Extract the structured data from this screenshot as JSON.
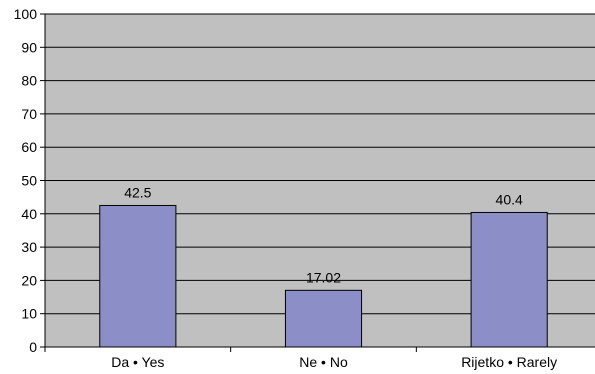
{
  "chart_data": {
    "type": "bar",
    "title": "",
    "xlabel": "",
    "ylabel": "",
    "categories": [
      "Da • Yes",
      "Ne • No",
      "Rijetko • Rarely"
    ],
    "values": [
      42.5,
      17.02,
      40.4
    ],
    "value_labels": [
      "42.5",
      "17.02",
      "40.4"
    ],
    "ylim": [
      0,
      100
    ],
    "yticks": [
      0,
      10,
      20,
      30,
      40,
      50,
      60,
      70,
      80,
      90,
      100
    ],
    "grid": true,
    "legend": "none",
    "colors": {
      "bar": "#8c8fc7",
      "bar_edge": "#000000",
      "plot_background": "#c0c0c0",
      "gridline": "#000000"
    }
  }
}
